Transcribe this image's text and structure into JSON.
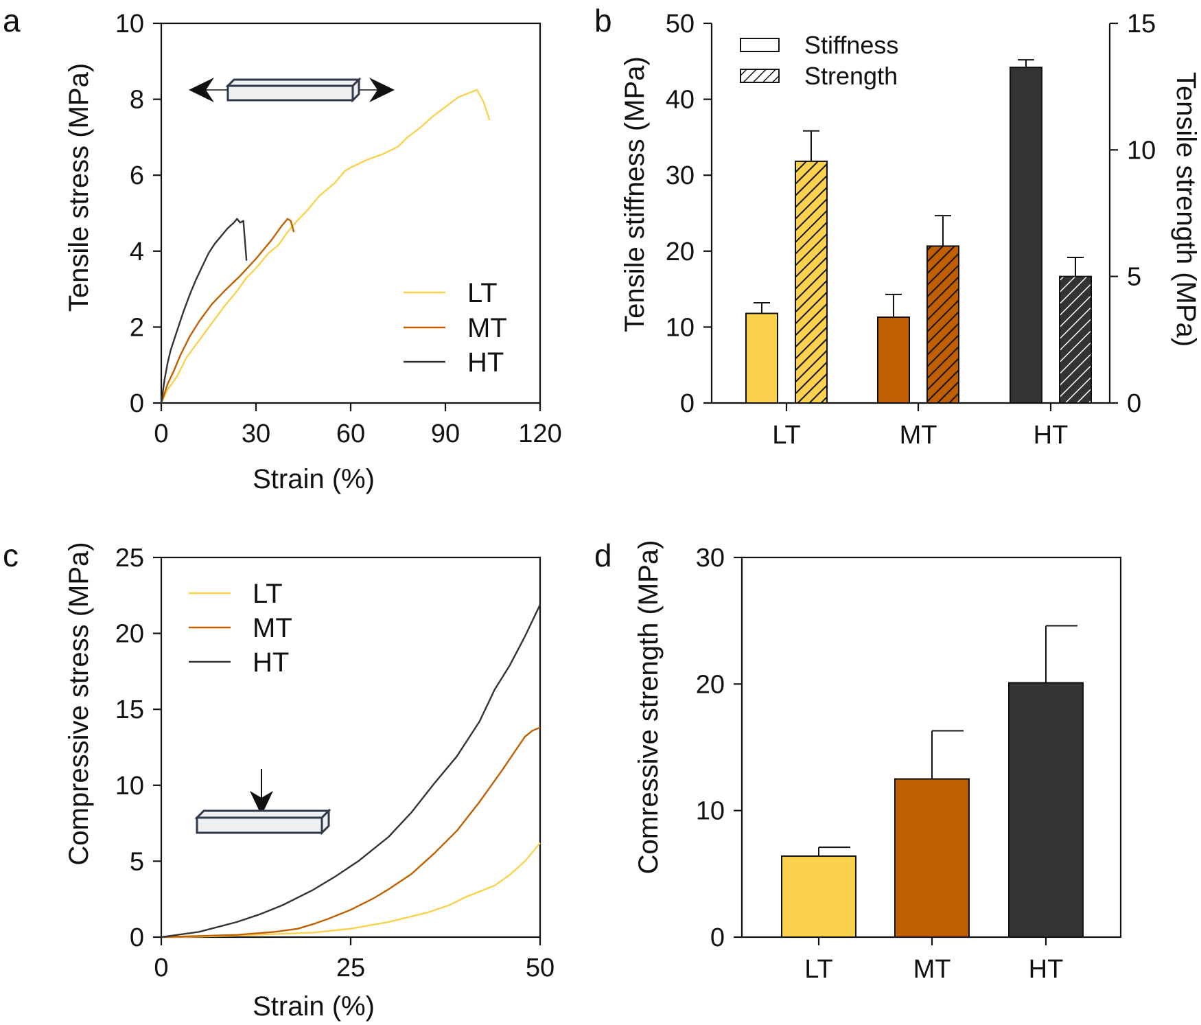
{
  "colors": {
    "LT": "#FAD24E",
    "MT": "#C05F00",
    "HT": "#333333",
    "axis": "#111111",
    "icon_fill": "#EFF0F2",
    "icon_stroke": "#2E3A4A"
  },
  "chart_data": [
    {
      "panel": "a",
      "type": "line",
      "title": "",
      "xlabel": "Strain  (%)",
      "ylabel": "Tensile stress  (MPa)",
      "xlim": [
        0,
        120
      ],
      "ylim": [
        0,
        10
      ],
      "xticks": [
        "0",
        "30",
        "60",
        "90",
        "120"
      ],
      "yticks": [
        "0",
        "2",
        "4",
        "6",
        "8",
        "10"
      ],
      "grid": false,
      "legend_position": "lower-right",
      "series": [
        {
          "name": "LT",
          "color_key": "LT",
          "x": [
            0,
            2,
            5,
            8,
            12,
            16,
            20,
            24,
            27,
            30,
            34,
            37,
            40,
            43,
            46,
            50,
            55,
            58,
            60,
            65,
            70,
            75,
            78,
            82,
            86,
            90,
            94,
            97,
            100,
            102,
            104
          ],
          "y": [
            0,
            0.35,
            0.7,
            1.2,
            1.65,
            2.1,
            2.55,
            2.95,
            3.3,
            3.55,
            3.95,
            4.15,
            4.5,
            4.8,
            5.05,
            5.45,
            5.8,
            6.1,
            6.2,
            6.4,
            6.55,
            6.75,
            7.0,
            7.25,
            7.55,
            7.8,
            8.05,
            8.15,
            8.25,
            7.95,
            7.45
          ]
        },
        {
          "name": "MT",
          "color_key": "MT",
          "x": [
            0,
            2,
            4,
            6,
            9,
            12,
            16,
            20,
            25,
            30,
            35,
            38,
            40,
            41,
            42
          ],
          "y": [
            0,
            0.5,
            0.85,
            1.25,
            1.75,
            2.15,
            2.6,
            2.95,
            3.35,
            3.8,
            4.3,
            4.65,
            4.85,
            4.8,
            4.5
          ]
        },
        {
          "name": "HT",
          "color_key": "HT",
          "x": [
            0,
            1,
            2,
            3,
            5,
            7,
            9,
            11,
            13,
            15,
            17,
            19,
            21,
            23,
            24,
            25,
            26,
            27
          ],
          "y": [
            0,
            0.6,
            1.05,
            1.4,
            1.9,
            2.4,
            2.85,
            3.25,
            3.6,
            3.95,
            4.2,
            4.4,
            4.6,
            4.75,
            4.85,
            4.75,
            4.8,
            3.75
          ]
        }
      ]
    },
    {
      "panel": "b",
      "type": "bar",
      "title": "",
      "xlabel": "",
      "ylabel": "Tensile stiffness (MPa)",
      "ylabel_right": "Tensile strength (MPa)",
      "ylim": [
        0,
        50
      ],
      "ylim_right": [
        0,
        15
      ],
      "yticks": [
        "0",
        "10",
        "20",
        "30",
        "40",
        "50"
      ],
      "yticks_right": [
        "0",
        "5",
        "10",
        "15"
      ],
      "categories": [
        "LT",
        "MT",
        "HT"
      ],
      "legend_position": "top-left",
      "series": [
        {
          "name": "Stiffness",
          "axis": "left",
          "pattern": "solid",
          "values": [
            11.8,
            11.3,
            44.2
          ],
          "errors": [
            1.4,
            3.0,
            1.0
          ]
        },
        {
          "name": "Strength",
          "axis": "right",
          "pattern": "hatched",
          "values": [
            9.55,
            6.2,
            5.0
          ],
          "errors": [
            1.2,
            1.2,
            0.75
          ]
        }
      ]
    },
    {
      "panel": "c",
      "type": "line",
      "title": "",
      "xlabel": "Strain  (%)",
      "ylabel": "Compressive stress  (MPa)",
      "xlim": [
        0,
        50
      ],
      "ylim": [
        0,
        25
      ],
      "xticks": [
        "0",
        "25",
        "50"
      ],
      "yticks": [
        "0",
        "5",
        "10",
        "15",
        "20",
        "25"
      ],
      "grid": false,
      "legend_position": "top-left",
      "series": [
        {
          "name": "LT",
          "color_key": "LT",
          "x": [
            0,
            5,
            10,
            15,
            20,
            25,
            30,
            35,
            38,
            40,
            42,
            44,
            46,
            48,
            50
          ],
          "y": [
            0,
            0.03,
            0.1,
            0.2,
            0.3,
            0.55,
            1.0,
            1.6,
            2.1,
            2.6,
            3.0,
            3.4,
            4.1,
            5.0,
            6.2
          ]
        },
        {
          "name": "MT",
          "color_key": "MT",
          "x": [
            0,
            10,
            15,
            18,
            20,
            22,
            25,
            28,
            30,
            33,
            36,
            39,
            42,
            45,
            48,
            49,
            50
          ],
          "y": [
            0,
            0.15,
            0.35,
            0.55,
            0.85,
            1.2,
            1.8,
            2.55,
            3.15,
            4.15,
            5.5,
            7.0,
            8.9,
            11.0,
            13.2,
            13.6,
            13.8
          ]
        },
        {
          "name": "HT",
          "color_key": "HT",
          "x": [
            0,
            5,
            10,
            13,
            16,
            20,
            23,
            26,
            30,
            33,
            36,
            39,
            42,
            44,
            46,
            48,
            50
          ],
          "y": [
            0,
            0.35,
            1.0,
            1.5,
            2.1,
            3.1,
            4.0,
            5.0,
            6.6,
            8.2,
            10.1,
            11.9,
            14.2,
            16.3,
            17.9,
            19.8,
            21.9
          ]
        }
      ]
    },
    {
      "panel": "d",
      "type": "bar",
      "title": "",
      "xlabel": "",
      "ylabel": "Comressive strength (MPa)",
      "ylim": [
        0,
        30
      ],
      "yticks": [
        "0",
        "10",
        "20",
        "30"
      ],
      "categories": [
        "LT",
        "MT",
        "HT"
      ],
      "series": [
        {
          "name": "Compressive strength",
          "values": [
            6.4,
            12.5,
            20.1
          ],
          "errors": [
            0.7,
            3.8,
            4.5
          ]
        }
      ]
    }
  ],
  "panels": {
    "a": "a",
    "b": "b",
    "c": "c",
    "d": "d"
  },
  "icons": {
    "tensile": "tensile-specimen-icon",
    "compressive": "compressive-specimen-icon"
  }
}
